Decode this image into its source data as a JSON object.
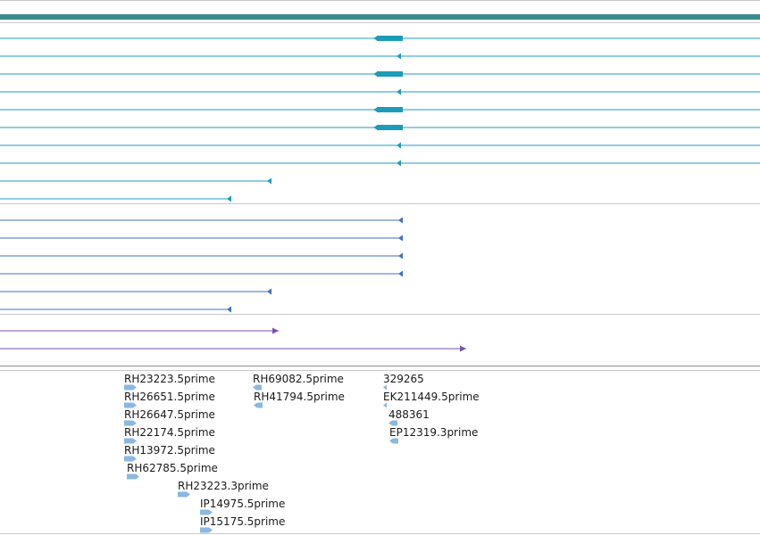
{
  "colors": {
    "background": "#ffffff",
    "ruler_bar": "#3a8c8c",
    "divider": "#c8c8c8",
    "transcript_teal": "#1c9cb8",
    "transcript_blue": "#3f6fc4",
    "transcript_purple": "#7a52b0",
    "est_marker": "#8ab8e0"
  },
  "tracks": {
    "teal_transcripts": [
      {
        "extent": 851,
        "thick_start": 418,
        "thick_end": 451,
        "arrow": "left"
      },
      {
        "extent": 851,
        "arrow_at": 448,
        "arrow": "left"
      },
      {
        "extent": 851,
        "thick_start": 418,
        "thick_end": 451,
        "arrow": "left"
      },
      {
        "extent": 851,
        "arrow_at": 448,
        "arrow": "left"
      },
      {
        "extent": 851,
        "thick_start": 418,
        "thick_end": 451,
        "arrow": "left"
      },
      {
        "extent": 851,
        "thick_start": 418,
        "thick_end": 451,
        "arrow": "left"
      },
      {
        "extent": 851,
        "arrow_at": 448,
        "arrow": "left"
      },
      {
        "extent": 851,
        "arrow_at": 448,
        "arrow": "left"
      },
      {
        "extent": 304,
        "arrow_at": 303,
        "arrow": "left"
      },
      {
        "extent": 259,
        "arrow_at": 258,
        "arrow": "left"
      }
    ],
    "blue_transcripts": [
      {
        "extent": 451,
        "arrow_at": 450,
        "arrow": "left"
      },
      {
        "extent": 451,
        "arrow_at": 450,
        "arrow": "left"
      },
      {
        "extent": 451,
        "arrow_at": 450,
        "arrow": "left"
      },
      {
        "extent": 451,
        "arrow_at": 450,
        "arrow": "left"
      },
      {
        "extent": 304,
        "arrow_at": 303,
        "arrow": "left"
      },
      {
        "extent": 259,
        "arrow_at": 258,
        "arrow": "left"
      }
    ],
    "purple_transcripts": [
      {
        "extent": 312,
        "arrow_at": 312,
        "arrow": "right"
      },
      {
        "extent": 522,
        "arrow_at": 522,
        "arrow": "right"
      }
    ]
  },
  "est_labels": [
    {
      "text": "RH23223.5prime",
      "dir": "right"
    },
    {
      "text": "RH26651.5prime",
      "dir": "right"
    },
    {
      "text": "RH26647.5prime",
      "dir": "right"
    },
    {
      "text": "RH22174.5prime",
      "dir": "right"
    },
    {
      "text": "RH13972.5prime",
      "dir": "right"
    },
    {
      "text": "RH62785.5prime",
      "dir": "right"
    },
    {
      "text": "RH23223.3prime",
      "dir": "right"
    },
    {
      "text": "IP14975.5prime",
      "dir": "right"
    },
    {
      "text": "IP15175.5prime",
      "dir": "right"
    },
    {
      "text": "RH69082.5prime",
      "dir": "left"
    },
    {
      "text": "RH41794.5prime",
      "dir": "left"
    },
    {
      "text": "329265",
      "dir": "left"
    },
    {
      "text": "EK211449.5prime",
      "dir": "left"
    },
    {
      "text": "488361",
      "dir": "left"
    },
    {
      "text": "EP12319.3prime",
      "dir": "left"
    }
  ]
}
